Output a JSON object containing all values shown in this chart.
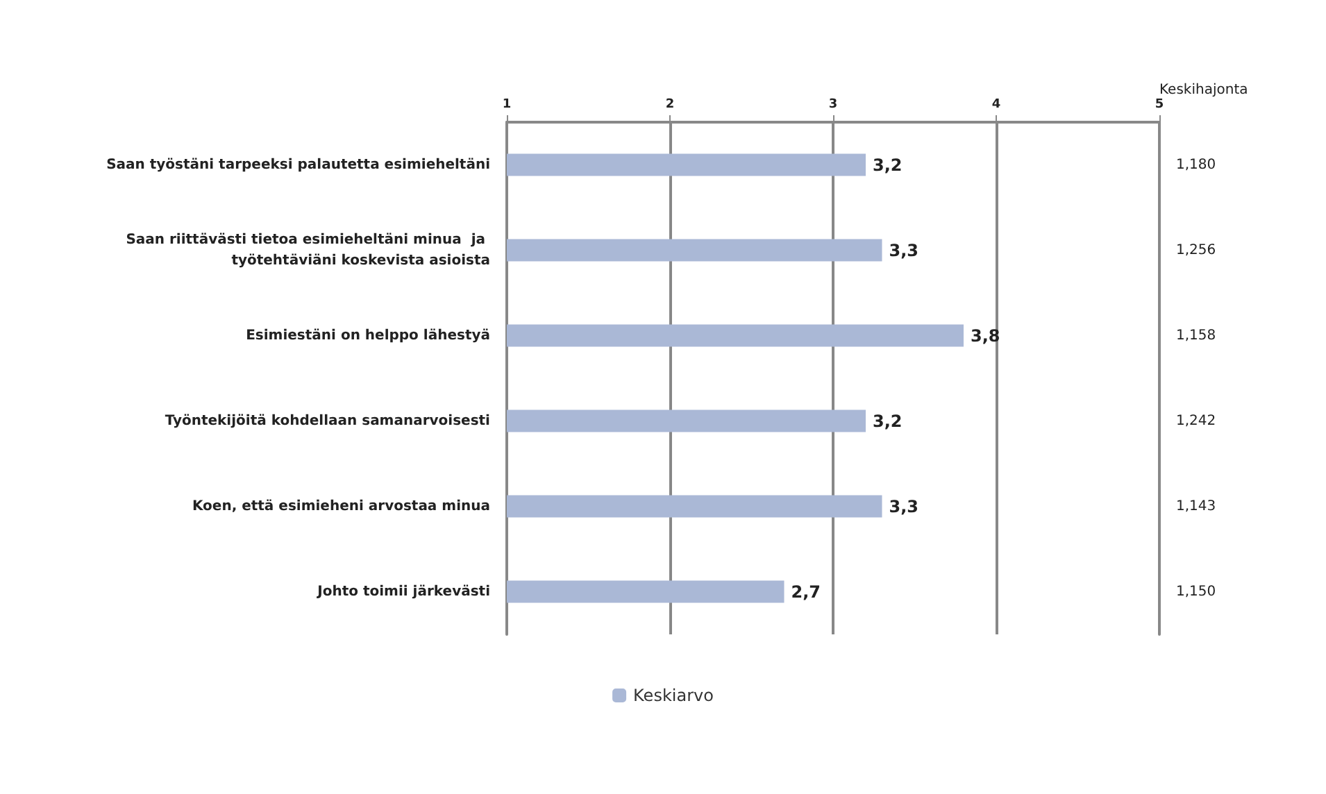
{
  "chart_data": {
    "type": "bar",
    "orientation": "horizontal",
    "categories": [
      "Saan työstäni tarpeeksi palautetta esimieheltäni",
      "Saan riittävästi tietoa esimieheltäni minua  ja työtehtäviäni koskevista asioista",
      "Esimiestäni on helppo lähestyä",
      "Työntekijöitä kohdellaan samanarvoisesti",
      "Koen, että esimieheni arvostaa minua",
      "Johto toimii järkevästi"
    ],
    "series": [
      {
        "name": "Keskiarvo",
        "color": "#aab8d6",
        "values": [
          3.2,
          3.3,
          3.8,
          3.2,
          3.3,
          2.7
        ],
        "value_labels": [
          "3,2",
          "3,3",
          "3,8",
          "3,2",
          "3,3",
          "2,7"
        ]
      }
    ],
    "y2label": "Keskihajonta",
    "y2_categories": [
      "1,180",
      "1,256",
      "1,158",
      "1,242",
      "1,143",
      "1,150"
    ],
    "xlim": [
      1,
      5
    ],
    "xticks": [
      1,
      2,
      3,
      4,
      5
    ],
    "grid": "x",
    "legend": "bottom"
  }
}
